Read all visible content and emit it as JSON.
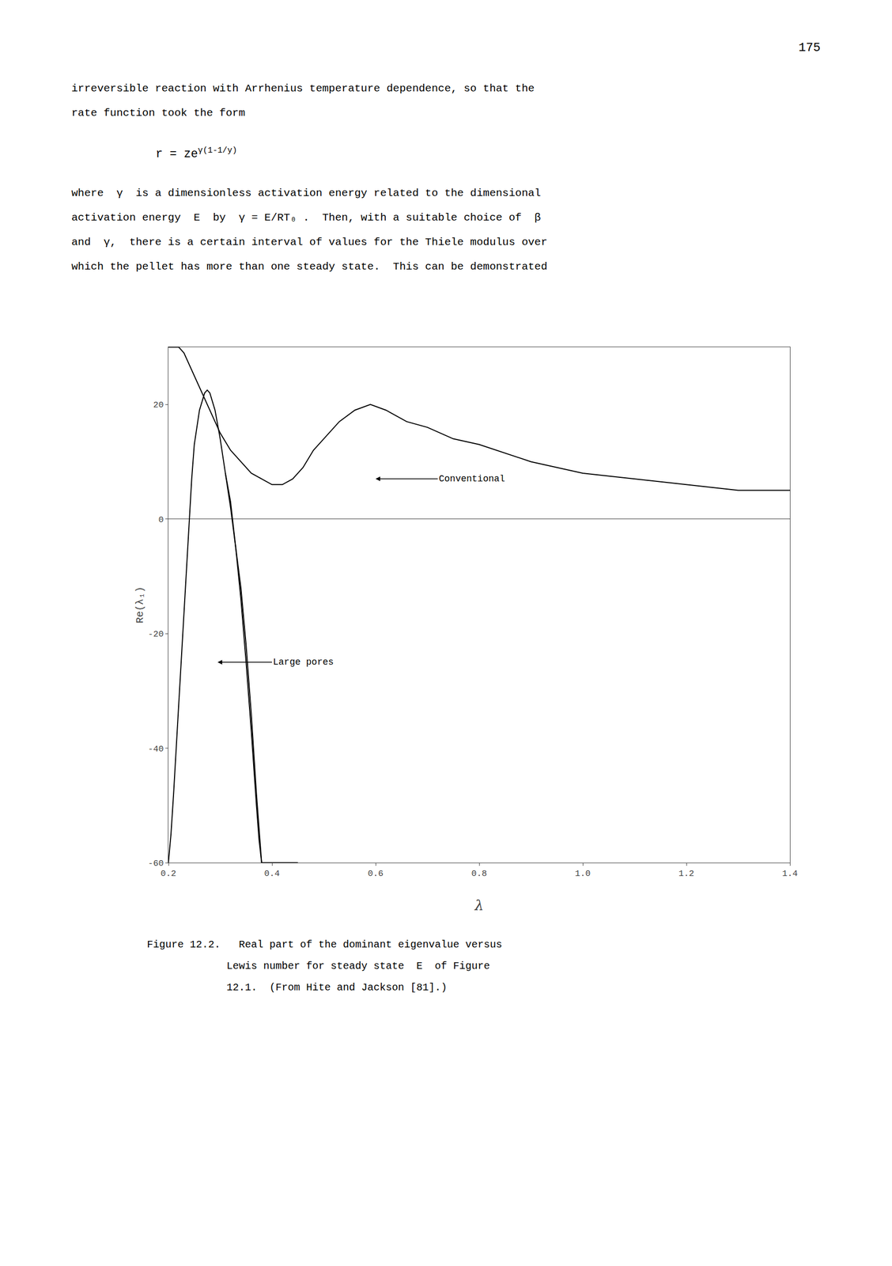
{
  "page_number": "175",
  "header_lines": [
    "irreversible reaction with Arrhenius temperature dependence, so that the",
    "rate function took the form"
  ],
  "formula": {
    "text": "r = ze",
    "superscript": "γ(1-1/y)"
  },
  "body_lines": [
    "where  γ  is a dimensionless activation energy related to the dimensional",
    "activation energy  E  by  γ = E/RT₀ .  Then, with a suitable choice of  β",
    "and  γ,  there is a certain interval of values for the Thiele modulus over",
    "which the pellet has more than one steady state.  This can be demonstrated"
  ],
  "chart_data": {
    "type": "line",
    "x_label": "λ",
    "y_label": "Re(λ₁)",
    "xlim": [
      0.2,
      1.4
    ],
    "ylim": [
      -60,
      30
    ],
    "xticks": [
      0.2,
      0.4,
      0.6,
      0.8,
      {
        "value": 1.0,
        "label": "1.0"
      },
      1.2,
      1.4
    ],
    "yticks": [
      -60,
      -40,
      -20,
      0,
      20
    ],
    "grid": false,
    "series": [
      {
        "color": "black",
        "x": [
          0.2,
          0.205,
          0.21,
          0.215,
          0.22,
          0.225,
          0.23,
          0.235,
          0.24,
          0.245,
          0.25,
          0.26,
          0.27,
          0.275,
          0.28,
          0.29,
          0.3,
          0.31,
          0.32,
          0.33,
          0.34,
          0.35,
          0.36,
          0.37,
          0.38
        ],
        "values": [
          -60,
          -55,
          -48,
          -40,
          -32,
          -24,
          -16,
          -8,
          0,
          7,
          13,
          19,
          22,
          22.5,
          22,
          19,
          14,
          8,
          2,
          -5,
          -12,
          -22,
          -34,
          -48,
          -60
        ]
      },
      {
        "color": "black",
        "x": [
          0.31,
          0.32,
          0.33,
          0.34,
          0.35,
          0.36,
          0.37,
          0.375,
          0.38,
          0.39,
          0.4,
          0.41,
          0.42,
          0.43,
          0.44,
          0.45
        ],
        "values": [
          8,
          3,
          -5,
          -14,
          -25,
          -37,
          -50,
          -56,
          -60,
          -60,
          -60,
          -60,
          -60,
          -60,
          -60,
          -60
        ]
      },
      {
        "color": "black",
        "x": [
          0.2,
          0.21,
          0.22,
          0.23,
          0.24,
          0.25,
          0.26,
          0.27,
          0.28,
          0.29,
          0.3,
          0.32,
          0.34,
          0.36,
          0.38,
          0.4,
          0.42,
          0.44,
          0.46,
          0.48,
          0.5,
          0.53,
          0.56,
          0.59,
          0.62,
          0.66,
          0.7,
          0.75,
          0.8,
          0.9,
          1.0,
          1.1,
          1.2,
          1.3,
          1.4
        ],
        "values": [
          30,
          30,
          30,
          29,
          27,
          25,
          23,
          21,
          19,
          17,
          15,
          12,
          10,
          8,
          7,
          6,
          6,
          7,
          9,
          12,
          14,
          17,
          19,
          20,
          19,
          17,
          16,
          14,
          13,
          10,
          8,
          7,
          6,
          5,
          5
        ]
      }
    ],
    "annotations": [
      {
        "text": "Conventional",
        "x": 0.6,
        "y": 7.0,
        "text_x": 0.72,
        "text_y": 7.0
      },
      {
        "text": "Large pores",
        "x": 0.295,
        "y": -25.0,
        "text_x": 0.4,
        "text_y": -25.0
      }
    ]
  },
  "caption_lines": [
    "Figure 12.2.   Real part of the dominant eigenvalue versus",
    "             Lewis number for steady state  E  of Figure",
    "             12.1.  (From Hite and Jackson [81].)"
  ]
}
